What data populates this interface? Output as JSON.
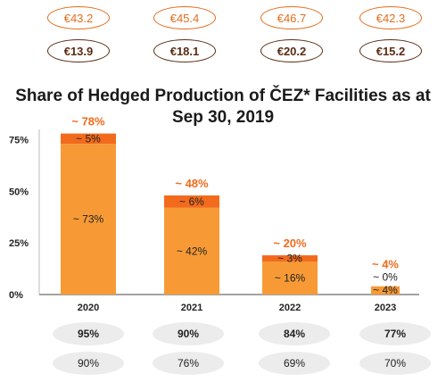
{
  "prices_row1": [
    "€43.2",
    "€45.4",
    "€46.7",
    "€42.3"
  ],
  "prices_row2": [
    "€13.9",
    "€18.1",
    "€20.2",
    "€15.2"
  ],
  "colors": {
    "base": "#f79a36",
    "top": "#f26b1d",
    "total_label": "#f26b1d",
    "pill_orange": "#e46c1a",
    "pill_brown": "#5a2d12"
  },
  "chart_data": {
    "type": "bar",
    "title": "Share of Hedged Production of ČEZ* Facilities as at Sep 30, 2019",
    "categories": [
      "2020",
      "2021",
      "2022",
      "2023"
    ],
    "series": [
      {
        "values": [
          73,
          42,
          16,
          4
        ]
      },
      {
        "values": [
          5,
          6,
          3,
          0
        ]
      }
    ],
    "segment_labels": [
      [
        "~ 73%",
        "~ 5%"
      ],
      [
        "~ 42%",
        "~ 6%"
      ],
      [
        "~ 16%",
        "~ 3%"
      ],
      [
        "~ 4%",
        "~ 0%"
      ]
    ],
    "total_labels": [
      "~ 78%",
      "~ 48%",
      "~ 20%",
      "~ 4%"
    ],
    "totals": [
      78,
      48,
      20,
      4
    ],
    "y_ticks": [
      "0%",
      "25%",
      "50%",
      "75%"
    ],
    "y_tick_values": [
      0,
      25,
      50,
      75
    ],
    "ylim": [
      0,
      80
    ],
    "stacked": true,
    "grid": false
  },
  "row_bold": [
    "95%",
    "90%",
    "84%",
    "77%"
  ],
  "row_plain": [
    "90%",
    "76%",
    "69%",
    "70%"
  ]
}
